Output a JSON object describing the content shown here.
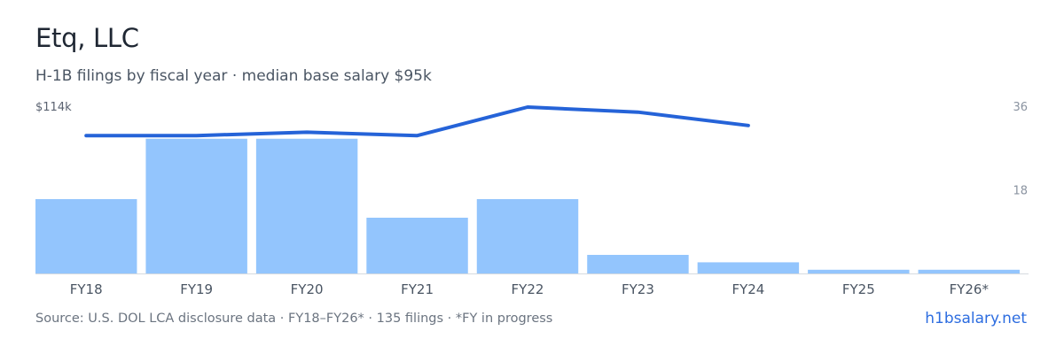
{
  "header": {
    "title": "Etq, LLC",
    "subtitle": "H-1B filings by fiscal year · median base salary $95k"
  },
  "footer": {
    "source": "Source: U.S. DOL LCA disclosure data · FY18–FY26* · 135 filings · *FY in progress",
    "site_link": "h1bsalary.net"
  },
  "chart_data": {
    "type": "bar",
    "categories": [
      "FY18",
      "FY19",
      "FY20",
      "FY21",
      "FY22",
      "FY23",
      "FY24",
      "FY25",
      "FY26*"
    ],
    "series": [
      {
        "kind": "bar",
        "axis": "right",
        "values": [
          16,
          29,
          29,
          12,
          16,
          4,
          2.4,
          0.8,
          0.8
        ]
      },
      {
        "kind": "line",
        "axis": "left",
        "values": [
          97,
          97,
          99,
          97,
          114,
          111,
          103,
          null,
          null
        ]
      }
    ],
    "y_left": {
      "max": 114,
      "top_label": "$114k"
    },
    "y_right": {
      "max": 36,
      "ticks": [
        36,
        18
      ]
    },
    "colors": {
      "bar": "#93c5fd",
      "line": "#2563d8",
      "axis": "#d5dae0"
    },
    "grid": false,
    "legend": "none"
  }
}
